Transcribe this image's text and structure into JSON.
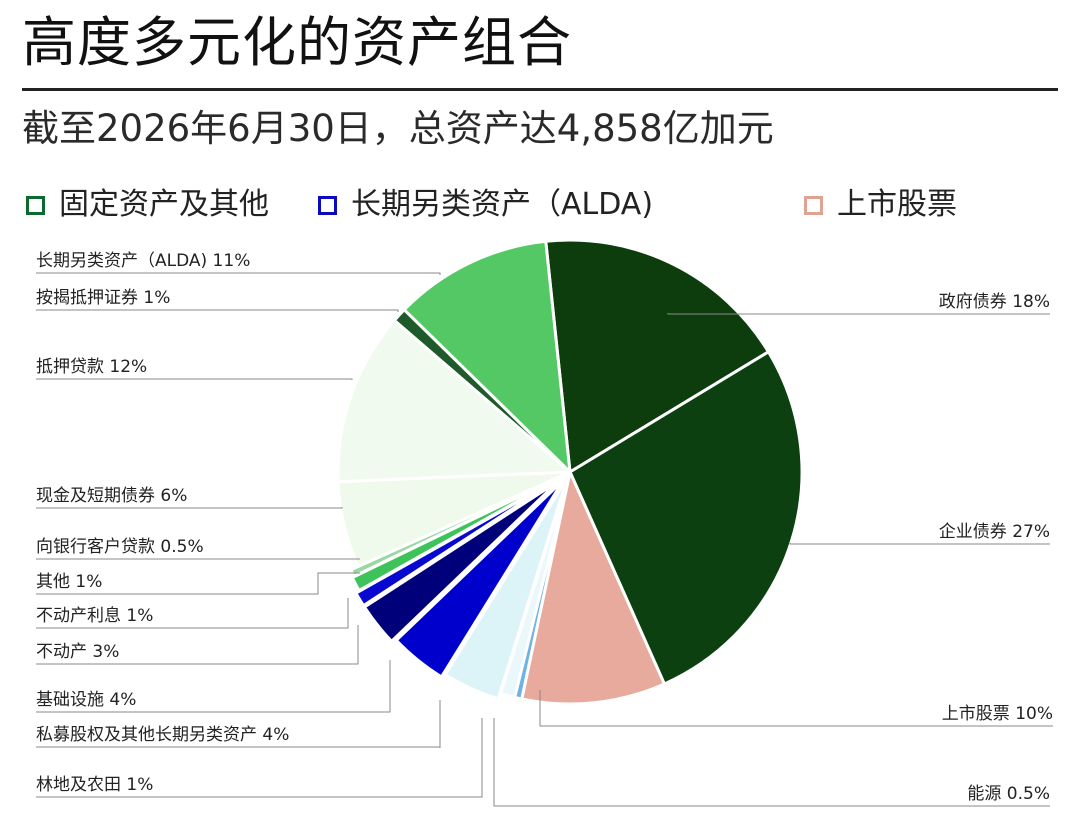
{
  "header": {
    "title": "高度多元化的资产组合",
    "subtitle": "截至2026年6月30日，总资产达4,858亿加元"
  },
  "legend": [
    {
      "label": "固定资产及其他",
      "color": "#0c6b2c"
    },
    {
      "label": "长期另类资产（ALDA)",
      "color": "#0a0abf"
    },
    {
      "label": "上市股票",
      "color": "#e2a293"
    }
  ],
  "chart_data": {
    "type": "pie",
    "title": "高度多元化的资产组合",
    "subtitle": "截至2026年6月30日，总资产达4,858亿加元",
    "total": "4,858亿加元",
    "legend_position": "top",
    "slices": [
      {
        "label": "政府债券",
        "value": 18,
        "value_label": "18%",
        "group": "固定资产及其他",
        "color": "#0d3d0d"
      },
      {
        "label": "企业债券",
        "value": 27,
        "value_label": "27%",
        "group": "固定资产及其他",
        "color": "#0d4010"
      },
      {
        "label": "上市股票",
        "value": 10,
        "value_label": "10%",
        "group": "上市股票",
        "color": "#e8aa9c"
      },
      {
        "label": "能源",
        "value": 0.5,
        "value_label": "0.5%",
        "group": "长期另类资产（ALDA)",
        "color": "#6fb3e6"
      },
      {
        "label": "林地及农田",
        "value": 1,
        "value_label": "1%",
        "group": "长期另类资产（ALDA)",
        "color": "#eaf7fb"
      },
      {
        "label": "私募股权及其他长期另类资产",
        "value": 4,
        "value_label": "4%",
        "group": "长期另类资产（ALDA)",
        "color": "#dcf4f8"
      },
      {
        "label": "基础设施",
        "value": 4,
        "value_label": "4%",
        "group": "长期另类资产（ALDA)",
        "color": "#0000cc"
      },
      {
        "label": "不动产",
        "value": 3,
        "value_label": "3%",
        "group": "长期另类资产（ALDA)",
        "color": "#00007a"
      },
      {
        "label": "不动产利息",
        "value": 1,
        "value_label": "1%",
        "group": "长期另类资产（ALDA)",
        "color": "#0808d0"
      },
      {
        "label": "其他",
        "value": 1,
        "value_label": "1%",
        "group": "固定资产及其他",
        "color": "#3ec35a"
      },
      {
        "label": "向银行客户贷款",
        "value": 0.5,
        "value_label": "0.5%",
        "group": "固定资产及其他",
        "color": "#9ad8a3"
      },
      {
        "label": "现金及短期债券",
        "value": 6,
        "value_label": "6%",
        "group": "固定资产及其他",
        "color": "#eff9ec"
      },
      {
        "label": "抵押贷款",
        "value": 12,
        "value_label": "12%",
        "group": "固定资产及其他",
        "color": "#f1faef"
      },
      {
        "label": "按揭抵押证券",
        "value": 1,
        "value_label": "1%",
        "group": "固定资产及其他",
        "color": "#1f5a2a"
      },
      {
        "label": "长期另类资产（ALDA)",
        "value": 11,
        "value_label": "11%",
        "group": "固定资产及其他",
        "color": "#55c866"
      }
    ]
  }
}
